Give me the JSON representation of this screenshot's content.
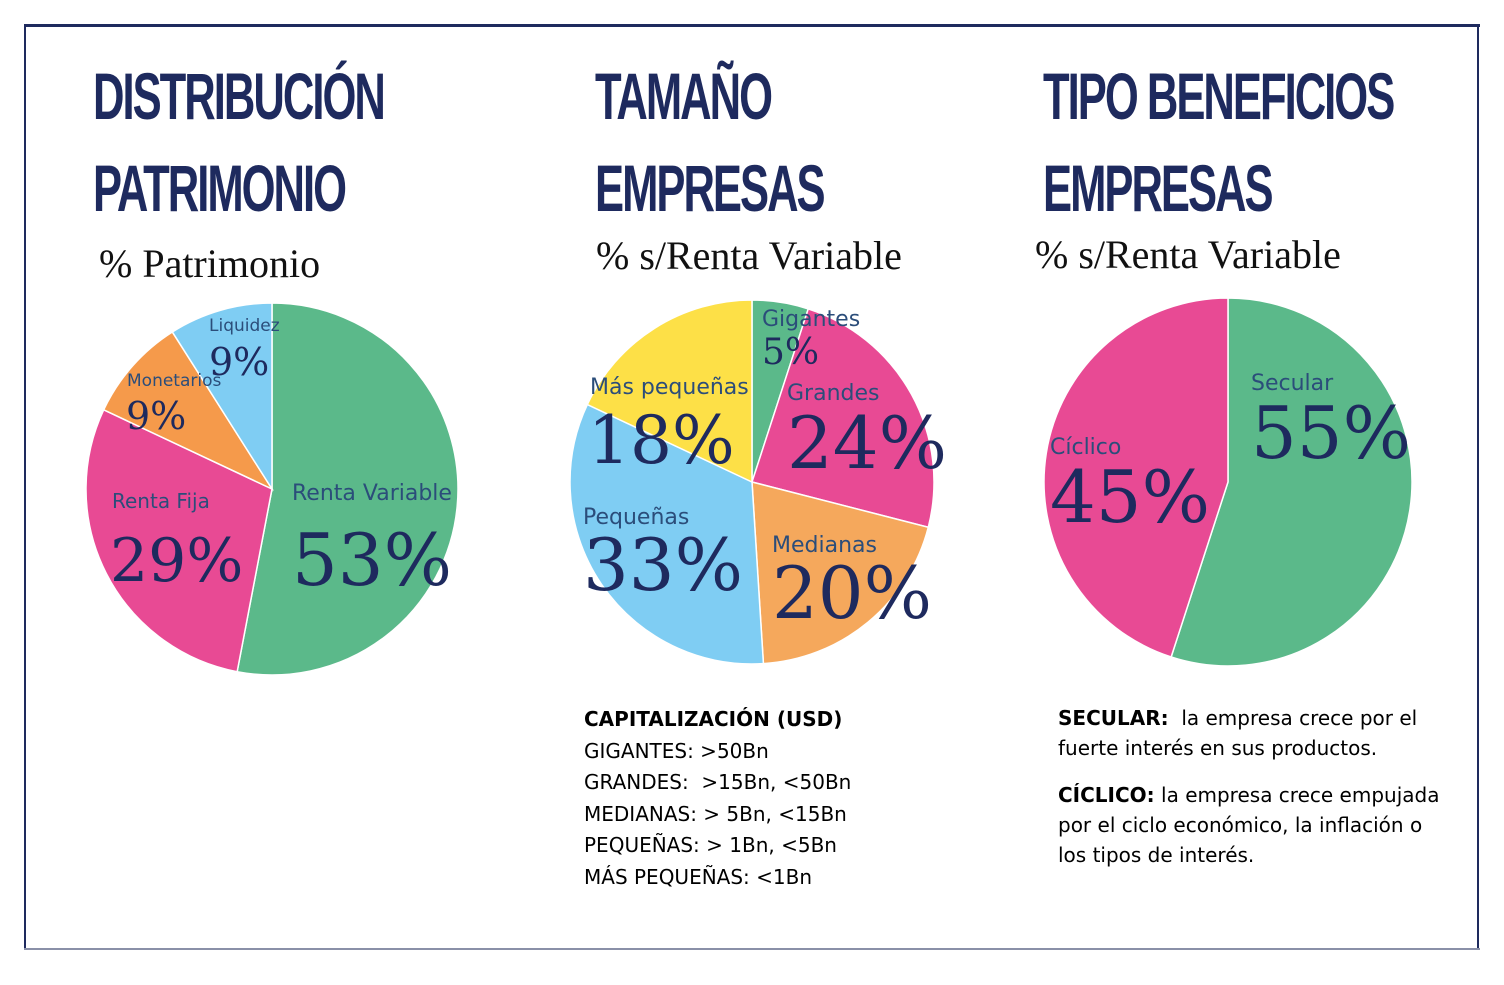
{
  "charts": [
    {
      "title_lines": [
        "DISTRIBUCIÓN",
        "PATRIMONIO"
      ],
      "subtitle": "% Patrimonio",
      "chart_data": {
        "type": "pie",
        "slices": [
          {
            "name": "Renta Variable",
            "value": 53,
            "label": "53%",
            "color": "#5bb98a"
          },
          {
            "name": "Renta Fija",
            "value": 29,
            "label": "29%",
            "color": "#e84a94"
          },
          {
            "name": "Monetarios",
            "value": 9,
            "label": "9%",
            "color": "#f59a4b"
          },
          {
            "name": "Liquidez",
            "value": 9,
            "label": "9%",
            "color": "#7fcdf3"
          }
        ]
      }
    },
    {
      "title_lines": [
        "TAMAÑO",
        "EMPRESAS"
      ],
      "subtitle": "% s/Renta Variable",
      "chart_data": {
        "type": "pie",
        "slices": [
          {
            "name": "Gigantes",
            "value": 5,
            "label": "5%",
            "color": "#5bb98a"
          },
          {
            "name": "Grandes",
            "value": 24,
            "label": "24%",
            "color": "#e84a94"
          },
          {
            "name": "Medianas",
            "value": 20,
            "label": "20%",
            "color": "#f5a85c"
          },
          {
            "name": "Pequeñas",
            "value": 33,
            "label": "33%",
            "color": "#7fcdf3"
          },
          {
            "name": "Más pequeñas",
            "value": 18,
            "label": "18%",
            "color": "#fde047"
          }
        ]
      }
    },
    {
      "title_lines": [
        "TIPO BENEFICIOS",
        "EMPRESAS"
      ],
      "subtitle": "% s/Renta Variable",
      "chart_data": {
        "type": "pie",
        "slices": [
          {
            "name": "Secular",
            "value": 55,
            "label": "55%",
            "color": "#5bb98a"
          },
          {
            "name": "Cíclico",
            "value": 45,
            "label": "45%",
            "color": "#e84a94"
          }
        ]
      }
    }
  ],
  "capitalization": {
    "heading": "CAPITALIZACIÓN (USD)",
    "lines": [
      "GIGANTES: >50Bn",
      "GRANDES:  >15Bn, <50Bn",
      "MEDIANAS: > 5Bn, <15Bn",
      "PEQUEÑAS: > 1Bn, <5Bn",
      "MÁS PEQUEÑAS: <1Bn"
    ]
  },
  "definitions": [
    {
      "term": "SECULAR:",
      "text": "  la empresa crece por el fuerte interés en sus productos."
    },
    {
      "term": "CÍCLICO:",
      "text": " la empresa crece empujada por el ciclo económico, la inflación o los tipos de interés."
    }
  ]
}
